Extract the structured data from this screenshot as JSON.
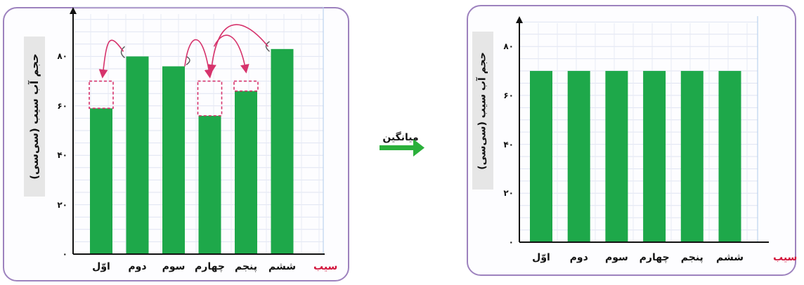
{
  "colors": {
    "bar": "#1ea84a",
    "frame": "#9d82be",
    "arrow": "#d6336c",
    "mid_arrow": "#2ab03a",
    "axis_name": "#d2143c"
  },
  "middle": {
    "label": "میانگین"
  },
  "chart_data": [
    {
      "type": "bar",
      "categories": [
        "اوّل",
        "دوم",
        "سوم",
        "چهارم",
        "پنجم",
        "ششم"
      ],
      "values": [
        59,
        80,
        76,
        56,
        66,
        83
      ],
      "dashed_targets": [
        70,
        70,
        70
      ],
      "xlabel": "سیب",
      "ylabel": "حجم آب سیب (سی‌سی)",
      "yticks": [
        "۰",
        "۲۰",
        "۴۰",
        "۶۰",
        "۸۰"
      ],
      "ytick_values": [
        0,
        20,
        40,
        60,
        80
      ],
      "ylim": [
        0,
        100
      ],
      "grid": true
    },
    {
      "type": "bar",
      "categories": [
        "اوّل",
        "دوم",
        "سوم",
        "چهارم",
        "پنجم",
        "ششم"
      ],
      "values": [
        70,
        70,
        70,
        70,
        70,
        70
      ],
      "xlabel": "سیب",
      "ylabel": "حجم آب سیب (سی‌سی)",
      "yticks": [
        "۰",
        "۲۰",
        "۴۰",
        "۶۰",
        "۸۰"
      ],
      "ytick_values": [
        0,
        20,
        40,
        60,
        80
      ],
      "ylim": [
        0,
        90
      ],
      "grid": true
    }
  ]
}
